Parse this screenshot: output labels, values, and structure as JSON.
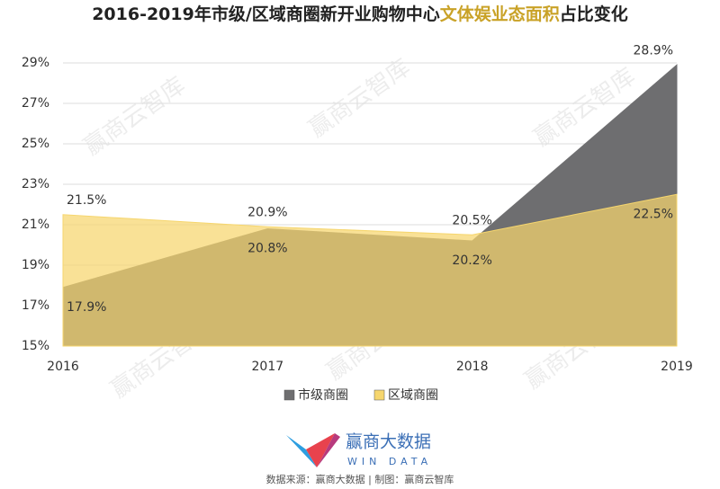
{
  "chart_data": {
    "type": "area",
    "title_parts": [
      {
        "text": "2016-2019年市级/区域商圈新开业购物中心",
        "color": "#222222"
      },
      {
        "text": "文体娱业态面积",
        "color": "#c9a227"
      },
      {
        "text": "占比变化",
        "color": "#222222"
      }
    ],
    "categories": [
      "2016",
      "2017",
      "2018",
      "2019"
    ],
    "series": [
      {
        "name": "市级商圈",
        "color": "#6e6e70",
        "values": [
          17.9,
          20.8,
          20.2,
          28.9
        ],
        "value_labels": [
          "17.9%",
          "20.8%",
          "20.2%",
          "28.9%"
        ]
      },
      {
        "name": "区域商圈",
        "color": "#f6d66e",
        "values": [
          21.5,
          20.9,
          20.5,
          22.5
        ],
        "value_labels": [
          "21.5%",
          "20.9%",
          "20.5%",
          "22.5%"
        ]
      }
    ],
    "ylim": [
      15,
      29
    ],
    "yticks": [
      {
        "value": 15,
        "label": "15%"
      },
      {
        "value": 17,
        "label": "17%"
      },
      {
        "value": 19,
        "label": "19%"
      },
      {
        "value": 21,
        "label": "21%"
      },
      {
        "value": 23,
        "label": "23%"
      },
      {
        "value": 25,
        "label": "25%"
      },
      {
        "value": 27,
        "label": "27%"
      },
      {
        "value": 29,
        "label": "29%"
      }
    ],
    "grid": true,
    "legend": "bottom",
    "watermark": "赢商云智库",
    "logo": {
      "name": "赢商大数据",
      "subtitle": "WIN DATA"
    },
    "source": "数据来源：赢商大数据 | 制图：赢商云智库"
  }
}
